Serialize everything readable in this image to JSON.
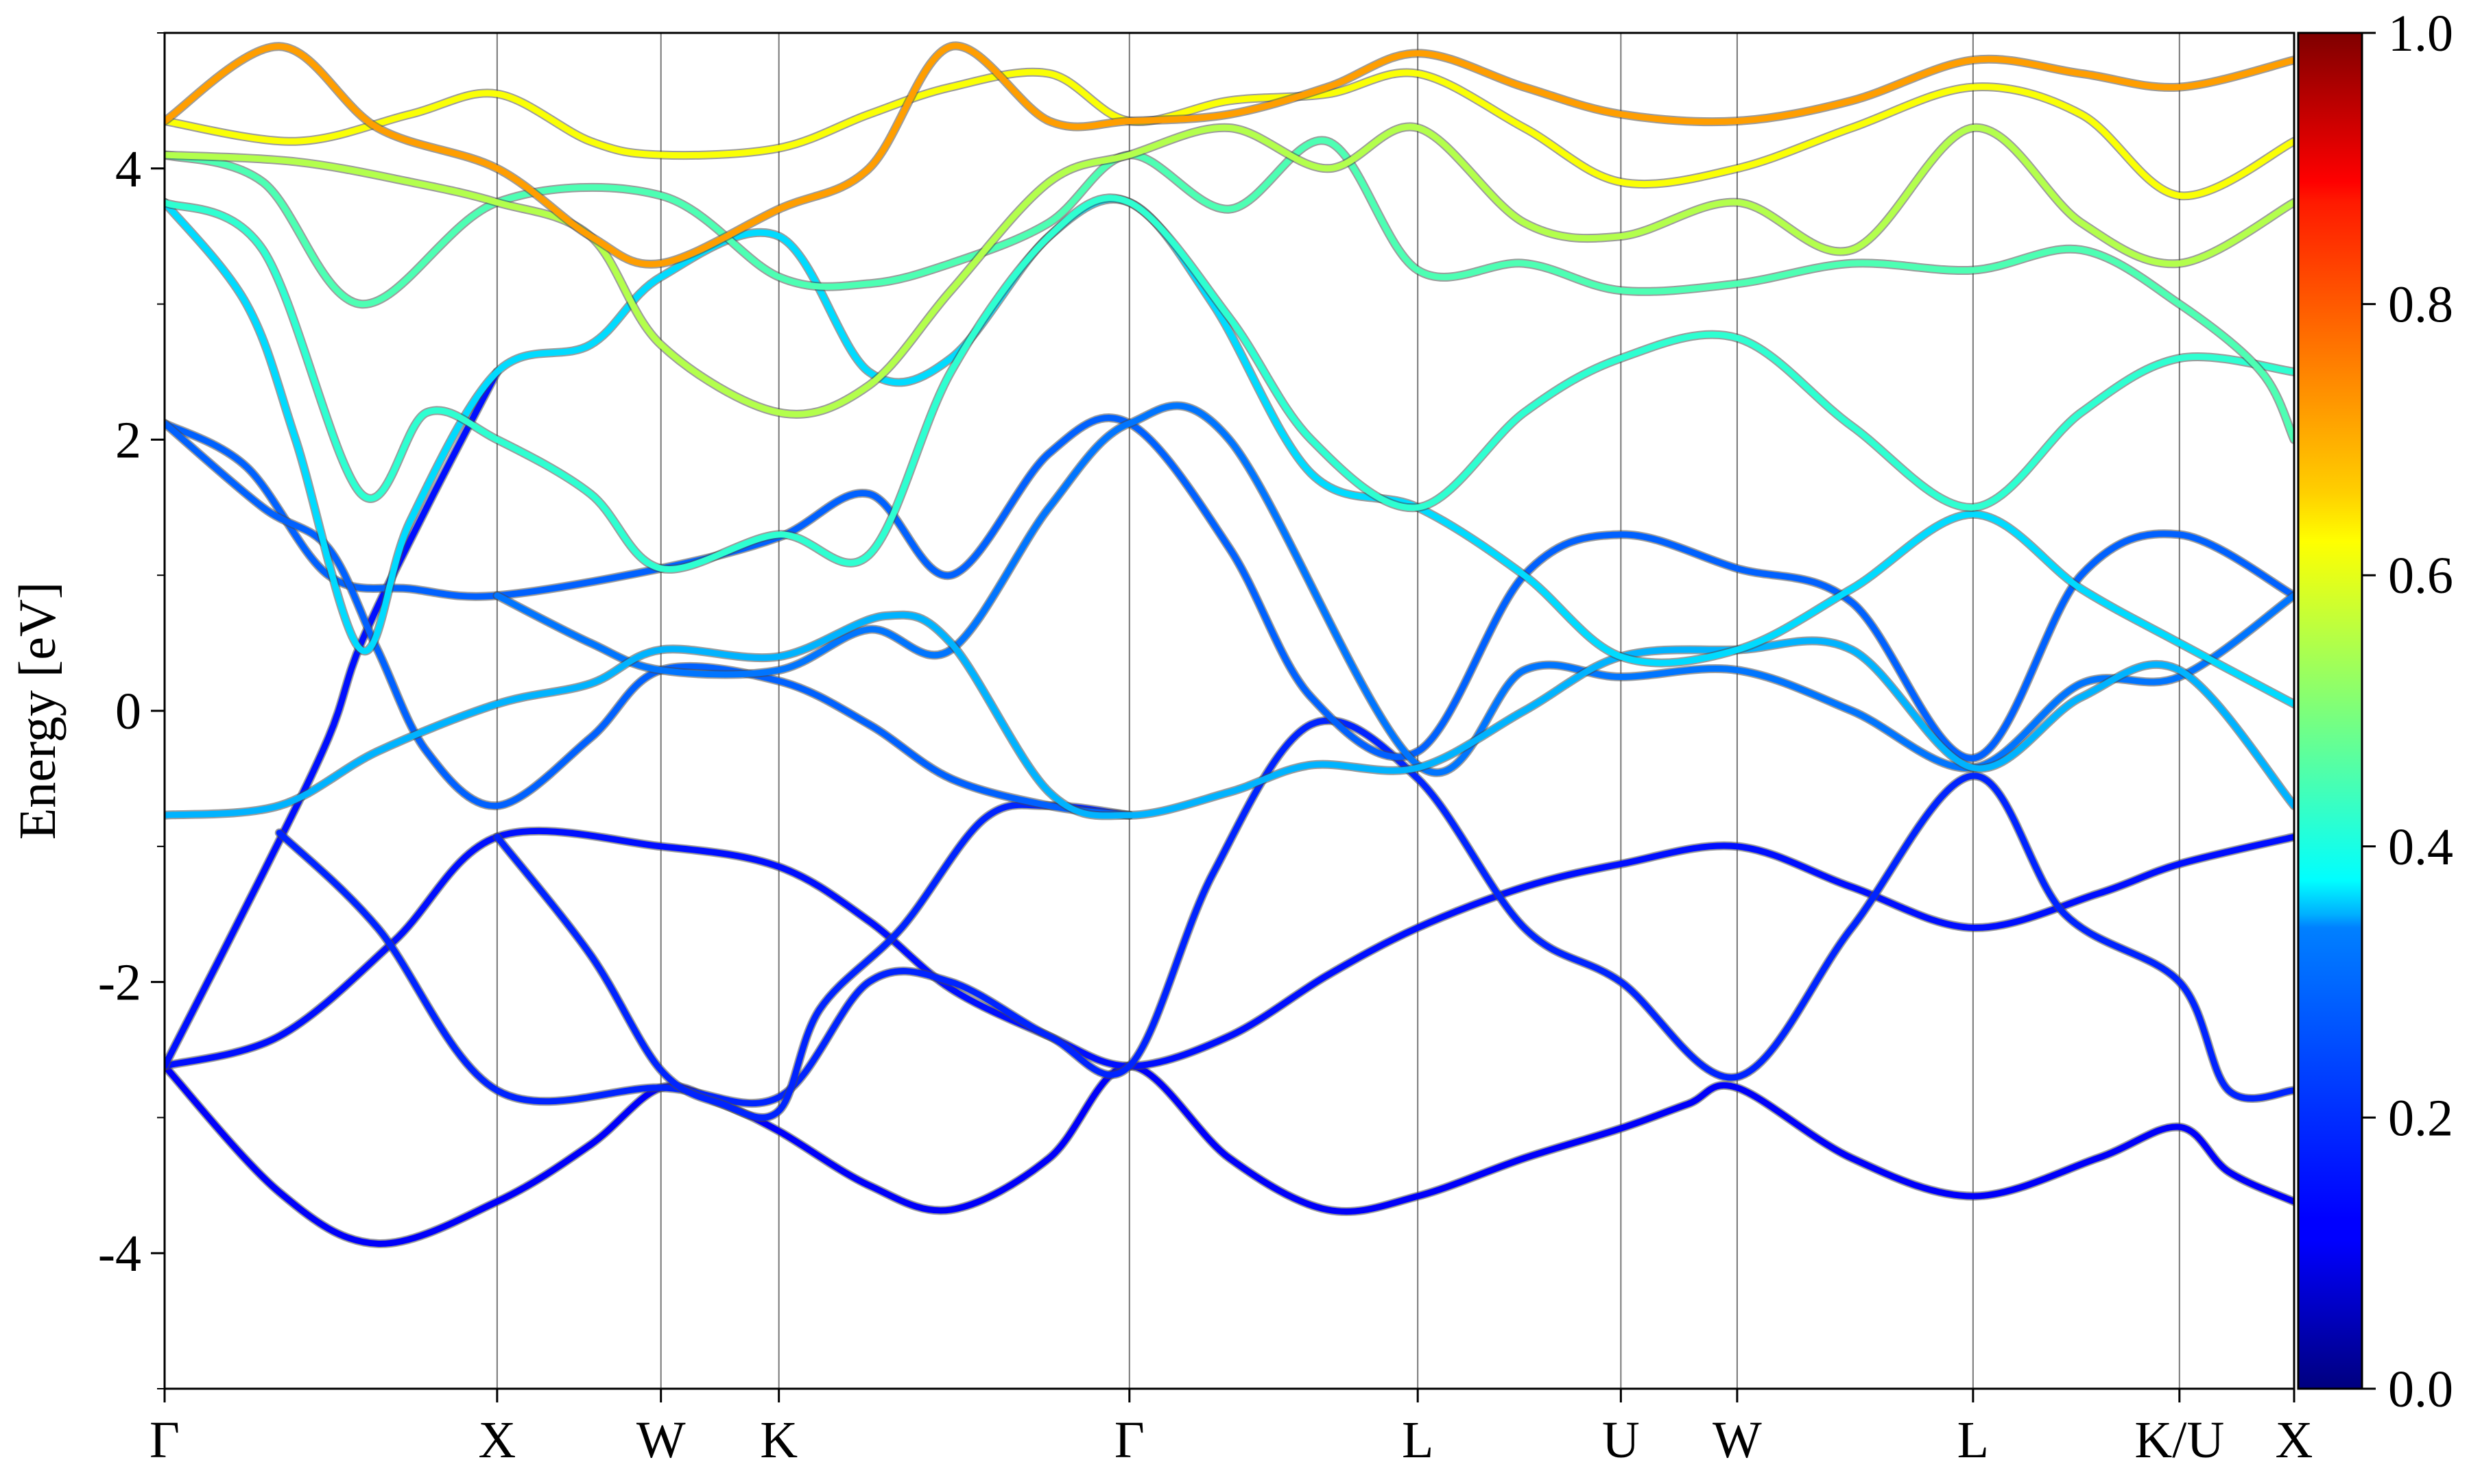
{
  "chart_data": {
    "type": "line",
    "title": "",
    "xlabel": "",
    "ylabel": "Energy [eV]",
    "ylim": [
      -5,
      5
    ],
    "y_ticks": [
      -4,
      -2,
      0,
      2,
      4
    ],
    "y_tick_labels": [
      "-4",
      "-2",
      "0",
      "2",
      "4"
    ],
    "y_minor_ticks": [
      -5,
      -3,
      -1,
      1,
      3,
      5
    ],
    "x_range": [
      0,
      13.0
    ],
    "k_points": [
      {
        "label": "Γ",
        "x": 0.0
      },
      {
        "label": "X",
        "x": 2.03
      },
      {
        "label": "W",
        "x": 3.03
      },
      {
        "label": "K",
        "x": 3.75
      },
      {
        "label": "Γ",
        "x": 5.89
      },
      {
        "label": "L",
        "x": 7.65
      },
      {
        "label": "U",
        "x": 8.89
      },
      {
        "label": "W",
        "x": 9.6
      },
      {
        "label": "L",
        "x": 11.04
      },
      {
        "label": "K/U",
        "x": 12.3
      },
      {
        "label": "X",
        "x": 13.0
      }
    ],
    "colorbar": {
      "colormap": "jet",
      "range": [
        0,
        1
      ],
      "ticks": [
        0.0,
        0.2,
        0.4,
        0.6,
        0.8,
        1.0
      ],
      "tick_labels": [
        "0.0",
        "0.2",
        "0.4",
        "0.6",
        "0.8",
        "1.0"
      ]
    },
    "series": [
      {
        "color_value": 0.12,
        "points": [
          [
            0.0,
            -2.62
          ],
          [
            0.7,
            -3.55
          ],
          [
            1.3,
            -3.93
          ],
          [
            2.03,
            -3.62
          ],
          [
            2.6,
            -3.2
          ],
          [
            3.03,
            -2.78
          ],
          [
            3.4,
            -2.9
          ],
          [
            3.75,
            -3.1
          ],
          [
            4.3,
            -3.5
          ],
          [
            4.8,
            -3.68
          ],
          [
            5.4,
            -3.3
          ],
          [
            5.89,
            -2.62
          ],
          [
            6.5,
            -3.3
          ],
          [
            7.1,
            -3.68
          ],
          [
            7.65,
            -3.58
          ],
          [
            8.3,
            -3.3
          ],
          [
            8.89,
            -3.08
          ],
          [
            9.3,
            -2.9
          ],
          [
            9.6,
            -2.78
          ],
          [
            10.3,
            -3.3
          ],
          [
            11.04,
            -3.58
          ],
          [
            11.8,
            -3.3
          ],
          [
            12.3,
            -3.07
          ],
          [
            12.6,
            -3.4
          ],
          [
            13.0,
            -3.62
          ]
        ]
      },
      {
        "color_value": 0.14,
        "points": [
          [
            0.0,
            -2.62
          ],
          [
            0.7,
            -2.4
          ],
          [
            1.4,
            -1.7
          ],
          [
            2.03,
            -0.93
          ],
          [
            3.03,
            -1.0
          ],
          [
            3.75,
            -1.15
          ],
          [
            4.3,
            -1.55
          ],
          [
            4.8,
            -2.05
          ],
          [
            5.4,
            -2.4
          ],
          [
            5.89,
            -2.62
          ],
          [
            6.5,
            -2.4
          ],
          [
            7.1,
            -1.95
          ],
          [
            7.65,
            -1.6
          ],
          [
            8.3,
            -1.3
          ],
          [
            8.89,
            -1.13
          ],
          [
            9.6,
            -1.0
          ],
          [
            10.3,
            -1.3
          ],
          [
            11.04,
            -1.6
          ],
          [
            11.8,
            -1.35
          ],
          [
            12.3,
            -1.13
          ],
          [
            13.0,
            -0.93
          ]
        ]
      },
      {
        "color_value": 0.14,
        "points": [
          [
            0.0,
            -2.62
          ],
          [
            0.6,
            -1.2
          ],
          [
            1.0,
            -0.2
          ],
          [
            1.2,
            0.5
          ],
          [
            1.6,
            1.5
          ],
          [
            2.03,
            2.5
          ]
        ]
      },
      {
        "color_value": 0.16,
        "points": [
          [
            0.7,
            -0.9
          ],
          [
            1.3,
            -1.6
          ],
          [
            2.03,
            -2.8
          ],
          [
            3.03,
            -2.78
          ],
          [
            3.75,
            -2.85
          ],
          [
            4.3,
            -2.0
          ],
          [
            4.8,
            -2.0
          ],
          [
            5.4,
            -2.4
          ],
          [
            5.89,
            -2.62
          ],
          [
            6.4,
            -1.2
          ],
          [
            7.0,
            -0.1
          ],
          [
            7.65,
            -0.5
          ],
          [
            8.3,
            -1.6
          ],
          [
            8.89,
            -2.0
          ],
          [
            9.6,
            -2.7
          ],
          [
            10.3,
            -1.6
          ],
          [
            11.04,
            -0.48
          ],
          [
            11.6,
            -1.5
          ],
          [
            12.3,
            -2.0
          ],
          [
            12.6,
            -2.8
          ],
          [
            13.0,
            -2.8
          ]
        ]
      },
      {
        "color_value": 0.16,
        "points": [
          [
            2.03,
            -0.93
          ],
          [
            2.6,
            -1.8
          ],
          [
            3.03,
            -2.65
          ],
          [
            3.4,
            -2.9
          ],
          [
            3.75,
            -2.95
          ],
          [
            4.0,
            -2.2
          ],
          [
            4.5,
            -1.6
          ],
          [
            5.0,
            -0.8
          ],
          [
            5.4,
            -0.7
          ],
          [
            5.89,
            -0.77
          ]
        ]
      },
      {
        "color_value": 0.22,
        "points": [
          [
            0.0,
            2.12
          ],
          [
            0.5,
            1.8
          ],
          [
            1.0,
            1.0
          ],
          [
            1.5,
            0.9
          ],
          [
            2.03,
            0.85
          ],
          [
            3.03,
            1.05
          ],
          [
            3.75,
            1.28
          ],
          [
            4.3,
            1.6
          ],
          [
            4.8,
            1.0
          ],
          [
            5.4,
            1.9
          ],
          [
            5.89,
            2.12
          ],
          [
            6.5,
            1.2
          ],
          [
            7.0,
            0.1
          ],
          [
            7.65,
            -0.3
          ],
          [
            8.3,
            1.0
          ],
          [
            8.89,
            1.3
          ],
          [
            9.6,
            1.05
          ],
          [
            10.3,
            0.8
          ],
          [
            11.04,
            -0.35
          ],
          [
            11.7,
            1.0
          ],
          [
            12.3,
            1.3
          ],
          [
            13.0,
            0.85
          ]
        ]
      },
      {
        "color_value": 0.22,
        "points": [
          [
            0.0,
            2.12
          ],
          [
            0.6,
            1.5
          ],
          [
            1.0,
            1.2
          ],
          [
            1.3,
            0.45
          ],
          [
            1.6,
            -0.3
          ],
          [
            2.03,
            -0.7
          ],
          [
            2.6,
            -0.2
          ],
          [
            3.03,
            0.3
          ],
          [
            3.75,
            0.22
          ],
          [
            4.3,
            -0.1
          ],
          [
            4.8,
            -0.5
          ],
          [
            5.4,
            -0.7
          ],
          [
            5.89,
            -0.77
          ]
        ]
      },
      {
        "color_value": 0.24,
        "points": [
          [
            2.03,
            0.85
          ],
          [
            2.6,
            0.5
          ],
          [
            3.03,
            0.3
          ],
          [
            3.75,
            0.3
          ],
          [
            4.3,
            0.6
          ],
          [
            4.8,
            0.45
          ],
          [
            5.4,
            1.5
          ],
          [
            5.89,
            2.12
          ],
          [
            6.5,
            2.0
          ],
          [
            7.65,
            -0.4
          ],
          [
            8.3,
            0.3
          ],
          [
            8.89,
            0.25
          ],
          [
            9.6,
            0.3
          ],
          [
            10.3,
            0.0
          ],
          [
            11.04,
            -0.42
          ],
          [
            11.7,
            0.2
          ],
          [
            12.3,
            0.25
          ],
          [
            13.0,
            0.85
          ]
        ]
      },
      {
        "color_value": 0.3,
        "points": [
          [
            0.0,
            -0.77
          ],
          [
            0.7,
            -0.7
          ],
          [
            1.3,
            -0.3
          ],
          [
            2.03,
            0.05
          ],
          [
            2.6,
            0.2
          ],
          [
            3.03,
            0.45
          ],
          [
            3.75,
            0.4
          ],
          [
            4.4,
            0.7
          ],
          [
            4.8,
            0.5
          ],
          [
            5.4,
            -0.6
          ],
          [
            5.89,
            -0.77
          ],
          [
            6.5,
            -0.6
          ],
          [
            7.0,
            -0.4
          ],
          [
            7.65,
            -0.42
          ],
          [
            8.3,
            0.0
          ],
          [
            8.89,
            0.4
          ],
          [
            9.6,
            0.45
          ],
          [
            10.3,
            0.45
          ],
          [
            11.04,
            -0.42
          ],
          [
            11.7,
            0.1
          ],
          [
            12.3,
            0.3
          ],
          [
            13.0,
            -0.7
          ]
        ]
      },
      {
        "color_value": 0.34,
        "points": [
          [
            0.0,
            3.75
          ],
          [
            0.5,
            3.0
          ],
          [
            0.8,
            2.0
          ],
          [
            1.2,
            0.45
          ],
          [
            1.5,
            1.4
          ],
          [
            2.03,
            2.5
          ],
          [
            2.6,
            2.7
          ],
          [
            3.03,
            3.2
          ],
          [
            3.75,
            3.5
          ],
          [
            4.3,
            2.5
          ],
          [
            4.8,
            2.6
          ],
          [
            5.4,
            3.5
          ],
          [
            5.89,
            3.75
          ],
          [
            6.4,
            3.0
          ],
          [
            7.0,
            1.75
          ],
          [
            7.65,
            1.5
          ],
          [
            8.3,
            1.0
          ],
          [
            8.89,
            0.4
          ],
          [
            9.6,
            0.45
          ],
          [
            10.3,
            0.9
          ],
          [
            11.04,
            1.45
          ],
          [
            11.7,
            0.9
          ],
          [
            12.3,
            0.5
          ],
          [
            13.0,
            0.05
          ]
        ]
      },
      {
        "color_value": 0.42,
        "points": [
          [
            0.0,
            3.75
          ],
          [
            0.6,
            3.4
          ],
          [
            1.2,
            1.6
          ],
          [
            1.6,
            2.2
          ],
          [
            2.03,
            2.0
          ],
          [
            2.6,
            1.6
          ],
          [
            3.03,
            1.05
          ],
          [
            3.75,
            1.3
          ],
          [
            4.3,
            1.15
          ],
          [
            4.8,
            2.5
          ],
          [
            5.4,
            3.5
          ],
          [
            5.89,
            3.75
          ],
          [
            6.5,
            2.9
          ],
          [
            7.0,
            2.0
          ],
          [
            7.65,
            1.5
          ],
          [
            8.3,
            2.2
          ],
          [
            8.89,
            2.6
          ],
          [
            9.6,
            2.75
          ],
          [
            10.3,
            2.1
          ],
          [
            11.04,
            1.5
          ],
          [
            11.7,
            2.2
          ],
          [
            12.3,
            2.6
          ],
          [
            13.0,
            2.5
          ]
        ]
      },
      {
        "color_value": 0.45,
        "points": [
          [
            0.0,
            4.1
          ],
          [
            0.6,
            3.9
          ],
          [
            1.2,
            3.0
          ],
          [
            2.03,
            3.75
          ],
          [
            3.03,
            3.8
          ],
          [
            3.75,
            3.2
          ],
          [
            4.3,
            3.15
          ],
          [
            4.8,
            3.3
          ],
          [
            5.4,
            3.6
          ],
          [
            5.89,
            4.1
          ],
          [
            6.5,
            3.7
          ],
          [
            7.1,
            4.2
          ],
          [
            7.65,
            3.25
          ],
          [
            8.3,
            3.3
          ],
          [
            8.89,
            3.1
          ],
          [
            9.6,
            3.15
          ],
          [
            10.3,
            3.3
          ],
          [
            11.04,
            3.25
          ],
          [
            11.7,
            3.4
          ],
          [
            12.3,
            3.0
          ],
          [
            12.8,
            2.5
          ],
          [
            13.0,
            2.0
          ]
        ]
      },
      {
        "color_value": 0.55,
        "points": [
          [
            0.0,
            4.1
          ],
          [
            0.8,
            4.05
          ],
          [
            1.5,
            3.9
          ],
          [
            2.03,
            3.75
          ],
          [
            2.6,
            3.5
          ],
          [
            3.03,
            2.7
          ],
          [
            3.75,
            2.2
          ],
          [
            4.3,
            2.4
          ],
          [
            4.8,
            3.1
          ],
          [
            5.4,
            3.9
          ],
          [
            5.89,
            4.1
          ],
          [
            6.5,
            4.3
          ],
          [
            7.1,
            4.0
          ],
          [
            7.65,
            4.3
          ],
          [
            8.3,
            3.6
          ],
          [
            8.89,
            3.5
          ],
          [
            9.6,
            3.75
          ],
          [
            10.3,
            3.4
          ],
          [
            11.04,
            4.3
          ],
          [
            11.7,
            3.6
          ],
          [
            12.3,
            3.3
          ],
          [
            13.0,
            3.75
          ]
        ]
      },
      {
        "color_value": 0.62,
        "points": [
          [
            0.0,
            4.35
          ],
          [
            0.8,
            4.2
          ],
          [
            1.5,
            4.4
          ],
          [
            2.03,
            4.55
          ],
          [
            2.6,
            4.2
          ],
          [
            3.03,
            4.1
          ],
          [
            3.75,
            4.15
          ],
          [
            4.3,
            4.4
          ],
          [
            4.8,
            4.6
          ],
          [
            5.4,
            4.7
          ],
          [
            5.89,
            4.35
          ],
          [
            6.5,
            4.5
          ],
          [
            7.1,
            4.55
          ],
          [
            7.65,
            4.7
          ],
          [
            8.3,
            4.3
          ],
          [
            8.89,
            3.9
          ],
          [
            9.6,
            4.0
          ],
          [
            10.3,
            4.3
          ],
          [
            11.04,
            4.6
          ],
          [
            11.7,
            4.4
          ],
          [
            12.3,
            3.8
          ],
          [
            13.0,
            4.2
          ]
        ]
      },
      {
        "color_value": 0.72,
        "points": [
          [
            0.0,
            4.35
          ],
          [
            0.7,
            4.9
          ],
          [
            1.3,
            4.3
          ],
          [
            2.03,
            4.0
          ],
          [
            2.6,
            3.5
          ],
          [
            3.03,
            3.3
          ],
          [
            3.75,
            3.7
          ],
          [
            4.3,
            4.0
          ],
          [
            4.8,
            4.9
          ],
          [
            5.4,
            4.35
          ],
          [
            5.89,
            4.35
          ],
          [
            6.5,
            4.4
          ],
          [
            7.1,
            4.6
          ],
          [
            7.65,
            4.85
          ],
          [
            8.3,
            4.6
          ],
          [
            8.89,
            4.4
          ],
          [
            9.6,
            4.35
          ],
          [
            10.3,
            4.5
          ],
          [
            11.04,
            4.8
          ],
          [
            11.7,
            4.7
          ],
          [
            12.3,
            4.6
          ],
          [
            13.0,
            4.8
          ]
        ]
      }
    ]
  }
}
